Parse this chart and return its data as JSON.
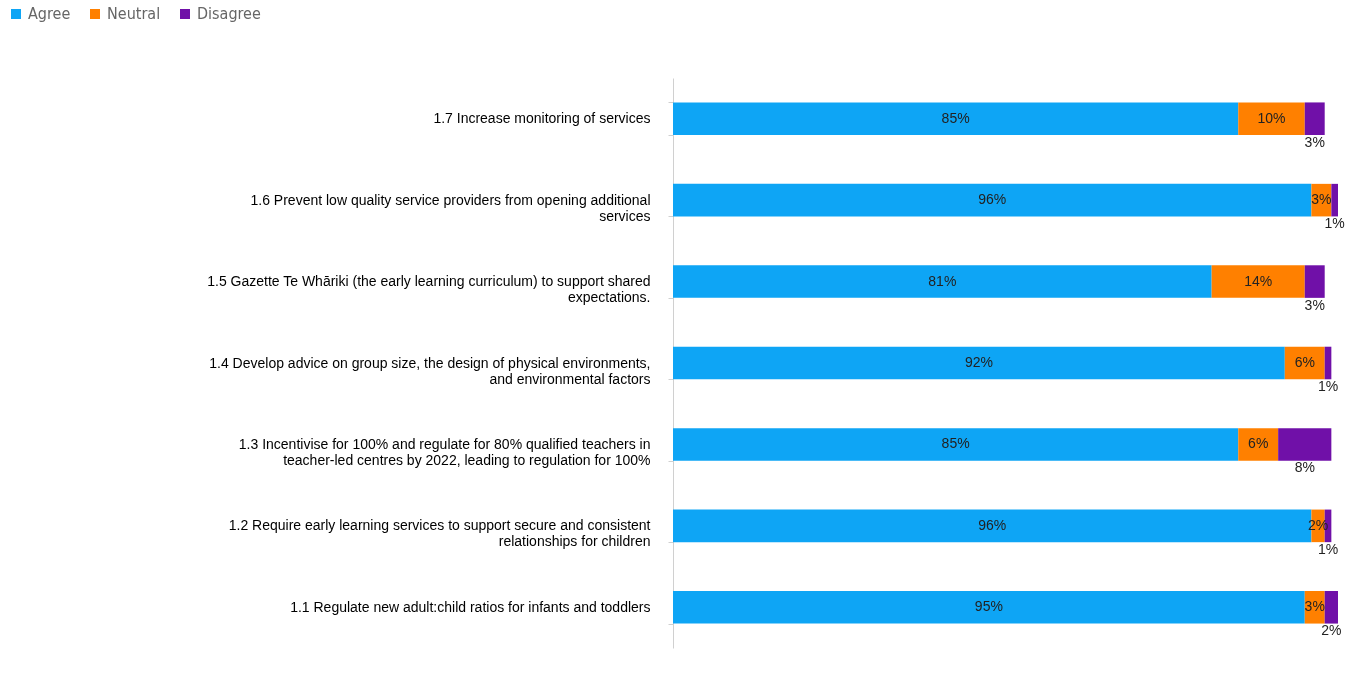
{
  "chart_data": {
    "type": "bar",
    "orientation": "horizontal",
    "stacked": true,
    "legend": "top left",
    "categories": [
      "1.7 Increase monitoring of services",
      "1.6 Prevent low quality service providers from opening additional services",
      "1.5 Gazette Te Whāriki (the early learning curriculum) to support shared expectations.",
      "1.4 Develop advice on group size, the design of physical environments, and environmental factors",
      "1.3 Incentivise for 100% and regulate for 80% qualified teachers in teacher-led centres by 2022, leading to regulation for 100%",
      "1.2 Require early learning services to support secure and consistent relationships for children",
      "1.1 Regulate new adult:child ratios for infants and toddlers"
    ],
    "series": [
      {
        "name": "Agree",
        "color": "#0ea5f5",
        "values": [
          85,
          96,
          81,
          92,
          85,
          96,
          95
        ],
        "value_labels": [
          "85%",
          "96%",
          "81%",
          "92%",
          "85%",
          "96%",
          "95%"
        ]
      },
      {
        "name": "Neutral",
        "color": "#ff8000",
        "values": [
          10,
          3,
          14,
          6,
          6,
          2,
          3
        ],
        "value_labels": [
          "10%",
          "3%",
          "14%",
          "6%",
          "6%",
          "2%",
          "3%"
        ]
      },
      {
        "name": "Disagree",
        "color": "#7010a8",
        "values": [
          3,
          1,
          3,
          1,
          8,
          1,
          2
        ],
        "value_labels": [
          "3%",
          "1%",
          "3%",
          "1%",
          "8%",
          "1%",
          "2%"
        ]
      }
    ]
  }
}
